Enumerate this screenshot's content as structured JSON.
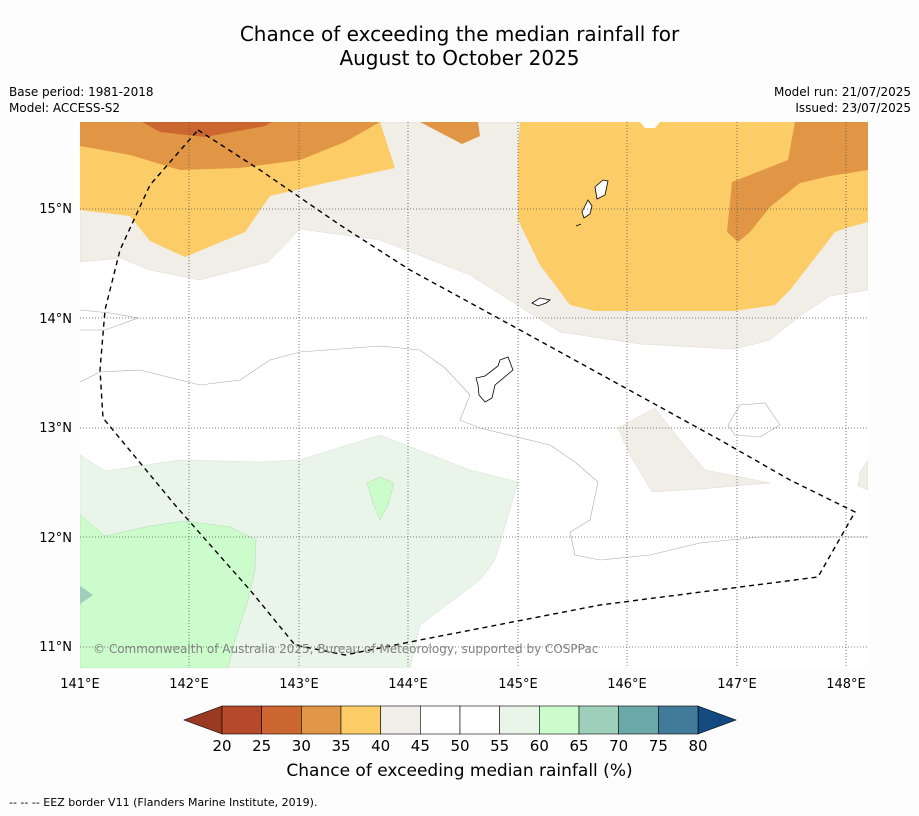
{
  "title": {
    "line1": "Chance of exceeding the median rainfall for",
    "line2": "August to October 2025"
  },
  "meta_left": {
    "base_period": "Base period: 1981-2018",
    "model": "Model: ACCESS-S2"
  },
  "meta_right": {
    "model_run": "Model run: 21/07/2025",
    "issued": "Issued: 23/07/2025"
  },
  "map": {
    "lat_labels": [
      "15°N",
      "14°N",
      "13°N",
      "12°N",
      "11°N"
    ],
    "lon_labels": [
      "141°E",
      "142°E",
      "143°E",
      "144°E",
      "145°E",
      "146°E",
      "147°E",
      "148°E"
    ],
    "copyright": "© Commonwealth of Australia 2025, Bureau of Meteorology, supported by COSPPac"
  },
  "colorbar": {
    "ticks": [
      "20",
      "25",
      "30",
      "35",
      "40",
      "45",
      "50",
      "55",
      "60",
      "65",
      "70",
      "75",
      "80"
    ],
    "colors": [
      "#b5492a",
      "#cc6630",
      "#e19645",
      "#fccc66",
      "#f1ede7",
      "#ffffff",
      "#ffffff",
      "#e9f5e9",
      "#ccfccc",
      "#9dcfba",
      "#6ba8a8",
      "#417b99"
    ],
    "under_color": "#9a3a22",
    "over_color": "#144a80",
    "label": "Chance of exceeding median rainfall (%)"
  },
  "footnote": "--  --  -- EEZ border V11 (Flanders Marine Institute, 2019)."
}
